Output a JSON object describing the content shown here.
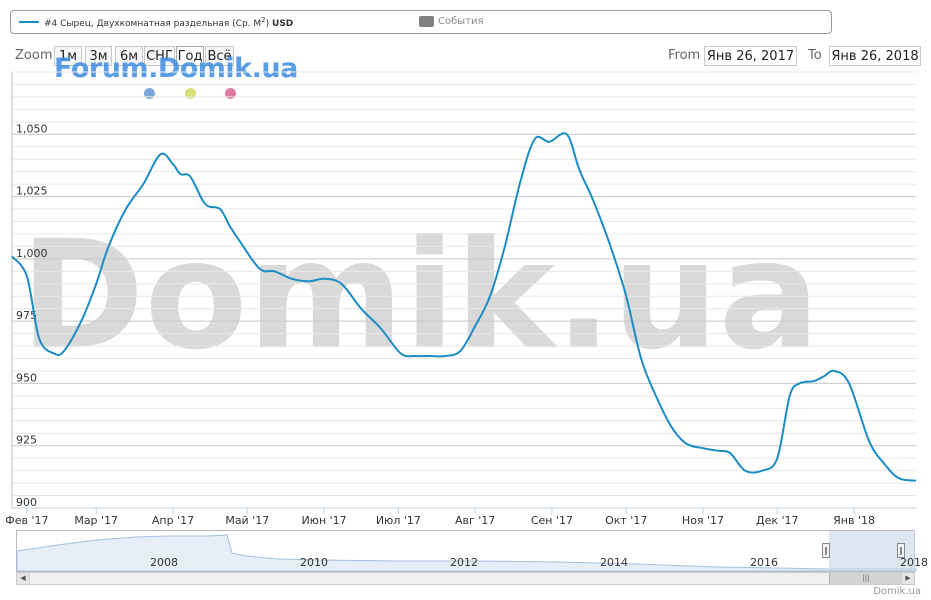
{
  "watermark": "Domik.ua",
  "forum_logo": "Forum.Domik.ua",
  "credit": "Domik.ua",
  "legend": {
    "series_label": "#4 Сырец, Двухкомнатная раздельная (Ср. M",
    "series_label_sup": "2",
    "series_label_tail": ")",
    "series_currency": "USD",
    "series_color": "#1a8dc4",
    "events_label": "События",
    "events_color": "#808080"
  },
  "range_selector": {
    "zoom_label": "Zoom",
    "buttons": [
      "1м",
      "3м",
      "6м",
      "СНГ",
      "Год",
      "Всё"
    ],
    "from_label": "From",
    "from_value": "Янв 26, 2017",
    "to_label": "To",
    "to_value": "Янв 26, 2018"
  },
  "dot_colors": [
    "#7da7d9",
    "#d9e07a",
    "#e07aa0"
  ],
  "navigator": {
    "years": [
      "2008",
      "2010",
      "2012",
      "2014",
      "2016",
      "2018"
    ]
  },
  "chart_data": {
    "type": "line",
    "series": [
      {
        "name": "#4 Сырец, Двухкомнатная раздельная (Ср. M2) USD",
        "x": [
          "2017-01-26",
          "2017-02-01",
          "2017-02-06",
          "2017-02-12",
          "2017-02-16",
          "2017-02-23",
          "2017-03-01",
          "2017-03-06",
          "2017-03-13",
          "2017-03-20",
          "2017-03-27",
          "2017-04-01",
          "2017-04-04",
          "2017-04-08",
          "2017-04-14",
          "2017-04-20",
          "2017-04-24",
          "2017-04-28",
          "2017-05-06",
          "2017-05-12",
          "2017-05-19",
          "2017-05-26",
          "2017-06-01",
          "2017-06-08",
          "2017-06-16",
          "2017-06-24",
          "2017-07-02",
          "2017-07-08",
          "2017-07-14",
          "2017-07-20",
          "2017-07-26",
          "2017-08-01",
          "2017-08-07",
          "2017-08-13",
          "2017-08-19",
          "2017-08-25",
          "2017-08-31",
          "2017-09-07",
          "2017-09-12",
          "2017-09-17",
          "2017-09-21",
          "2017-09-25",
          "2017-10-01",
          "2017-10-07",
          "2017-10-13",
          "2017-10-19",
          "2017-10-25",
          "2017-11-01",
          "2017-11-07",
          "2017-11-12",
          "2017-11-18",
          "2017-11-25",
          "2017-12-01",
          "2017-12-06",
          "2017-12-10",
          "2017-12-16",
          "2017-12-20",
          "2017-12-24",
          "2017-12-30",
          "2018-01-07",
          "2018-01-13",
          "2018-01-19",
          "2018-01-26"
        ],
        "y": [
          1001,
          993,
          968,
          962,
          963,
          975,
          990,
          1005,
          1020,
          1030,
          1042,
          1038,
          1034,
          1033,
          1022,
          1020,
          1013,
          1007,
          996,
          995,
          992,
          991,
          992,
          990,
          980,
          972,
          962,
          961,
          961,
          961,
          963,
          973,
          985,
          1005,
          1030,
          1048,
          1047,
          1050,
          1036,
          1025,
          1015,
          1004,
          985,
          960,
          945,
          933,
          926,
          924,
          923,
          922,
          915,
          915,
          920,
          945,
          950,
          951,
          953,
          955,
          950,
          927,
          918,
          912,
          911
        ]
      }
    ],
    "xlabel": "",
    "ylabel": "",
    "x_range": [
      "2017-01-26",
      "2018-01-26"
    ],
    "ylim": [
      900,
      1075
    ],
    "y_ticks": [
      900,
      925,
      950,
      975,
      1000,
      1025,
      1050
    ],
    "y_tick_labels": [
      "900",
      "925",
      "950",
      "975",
      "1,000",
      "1,025",
      "1,050"
    ],
    "x_tick_labels": [
      "Фев '17",
      "Мар '17",
      "Апр '17",
      "Май '17",
      "Июн '17",
      "Июл '17",
      "Авг '17",
      "Сен '17",
      "Окт '17",
      "Ноя '17",
      "Дек '17",
      "Янв '18"
    ],
    "x_tick_dates": [
      "2017-02-01",
      "2017-03-01",
      "2017-04-01",
      "2017-05-01",
      "2017-06-01",
      "2017-07-01",
      "2017-08-01",
      "2017-09-01",
      "2017-10-01",
      "2017-11-01",
      "2017-12-01",
      "2018-01-01"
    ],
    "grid": true,
    "legend_position": "top"
  }
}
